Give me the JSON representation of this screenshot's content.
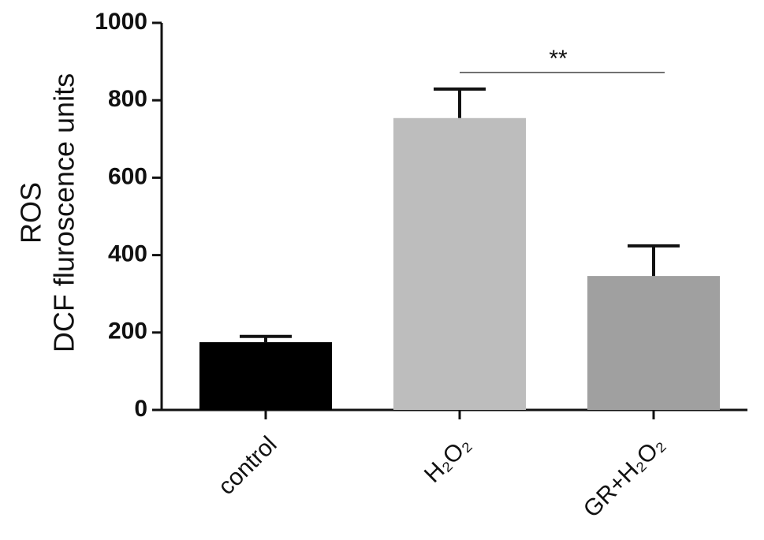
{
  "chart_data": {
    "type": "bar",
    "y_label_lines": [
      "ROS",
      "DCF fluroscence units"
    ],
    "categories": [
      "control",
      "H₂O₂",
      "GR+H₂O₂"
    ],
    "values": [
      175,
      754,
      346
    ],
    "errors": [
      15,
      75,
      78
    ],
    "colors": [
      "#000000",
      "#bdbdbd",
      "#a0a0a0"
    ],
    "ylim": [
      0,
      1000
    ],
    "yticks": [
      0,
      200,
      400,
      600,
      800,
      1000
    ],
    "annotations": [
      {
        "text": "**"
      }
    ]
  }
}
